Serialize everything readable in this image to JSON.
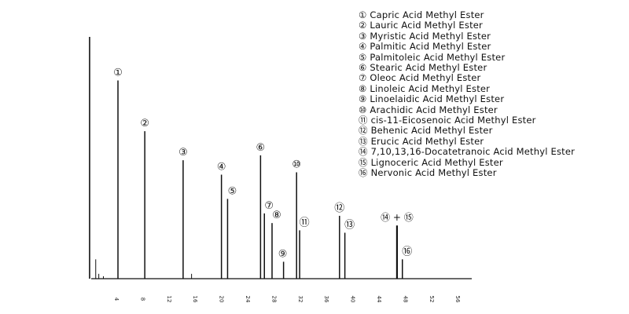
{
  "chart_data": {
    "type": "line",
    "title": "",
    "xlabel": "",
    "ylabel": "",
    "xlim": [
      0,
      60
    ],
    "ylim": [
      0,
      100
    ],
    "grid": false,
    "legend_position": "top-right",
    "x_ticks": [
      "4",
      "8",
      "12",
      "16",
      "20",
      "24",
      "28",
      "32",
      "36",
      "40",
      "44",
      "48",
      "52",
      "56"
    ],
    "solvent_peak": {
      "x": 0.2,
      "y": 100
    },
    "minor_peaks": [
      {
        "x": 1.0,
        "y": 8
      },
      {
        "x": 1.4,
        "y": 2
      },
      {
        "x": 2.0,
        "y": 1
      },
      {
        "x": 13.5,
        "y": 2
      }
    ],
    "series": [
      {
        "peaks": [
          {
            "label": "①",
            "x": 3.9,
            "y": 82
          },
          {
            "label": "②",
            "x": 7.4,
            "y": 61
          },
          {
            "label": "③",
            "x": 12.4,
            "y": 49
          },
          {
            "label": "④",
            "x": 17.4,
            "y": 43
          },
          {
            "label": "⑤",
            "x": 18.2,
            "y": 33
          },
          {
            "label": "⑥",
            "x": 22.5,
            "y": 51
          },
          {
            "label": "⑦",
            "x": 23.0,
            "y": 27
          },
          {
            "label": "⑧",
            "x": 24.0,
            "y": 23
          },
          {
            "label": "⑨",
            "x": 25.5,
            "y": 7
          },
          {
            "label": "⑩",
            "x": 27.2,
            "y": 44
          },
          {
            "label": "⑪",
            "x": 27.6,
            "y": 20
          },
          {
            "label": "⑫",
            "x": 32.8,
            "y": 26
          },
          {
            "label": "⑬",
            "x": 33.5,
            "y": 19
          },
          {
            "label": "⑭ + ⑮",
            "x": 40.3,
            "y": 22
          },
          {
            "label": "⑯",
            "x": 41.0,
            "y": 8
          }
        ]
      }
    ],
    "legend": [
      {
        "num": "①",
        "text": "Capric Acid Methyl Ester"
      },
      {
        "num": "②",
        "text": "Lauric Acid Methyl Ester"
      },
      {
        "num": "③",
        "text": "Myristic Acid Methyl Ester"
      },
      {
        "num": "④",
        "text": "Palmitic Acid Methyl Ester"
      },
      {
        "num": "⑤",
        "text": "Palmitoleic Acid Methyl Ester"
      },
      {
        "num": "⑥",
        "text": "Stearic Acid Methyl Ester"
      },
      {
        "num": "⑦",
        "text": "Oleoc Acid Methyl Ester"
      },
      {
        "num": "⑧",
        "text": "Linoleic Acid Methyl Ester"
      },
      {
        "num": "⑨",
        "text": "Linoelaidic Acid Methyl Ester"
      },
      {
        "num": "⑩",
        "text": "Arachidic Acid Methyl Ester"
      },
      {
        "num": "⑪",
        "text": "cis-11-Eicosenoic Acid Methyl Ester"
      },
      {
        "num": "⑫",
        "text": "Behenic Acid Methyl Ester"
      },
      {
        "num": "⑬",
        "text": "Erucic Acid Methyl Ester"
      },
      {
        "num": "⑭",
        "text": "7,10,13,16-Docatetranoic Acid Methyl Ester"
      },
      {
        "num": "⑮",
        "text": "Lignoceric Acid Methyl Ester"
      },
      {
        "num": "⑯",
        "text": "Nervonic Acid Methyl Ester"
      }
    ]
  }
}
